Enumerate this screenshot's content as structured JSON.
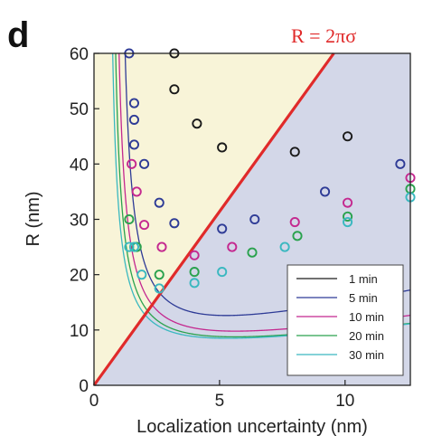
{
  "panel_label": "d",
  "annotation": "R = 2πσ",
  "chart_data": {
    "type": "scatter",
    "xlabel": "Localization uncertainty (nm)",
    "ylabel": "R (nm)",
    "xlim": [
      0,
      12.6
    ],
    "ylim": [
      0,
      60
    ],
    "xticks": [
      0,
      5,
      10
    ],
    "yticks": [
      0,
      10,
      20,
      30,
      40,
      50,
      60
    ],
    "grid": false,
    "legend_position": "bottom-right",
    "regions": {
      "above_line_color": "#f8f4d8",
      "below_line_color": "#d3d7e8"
    },
    "reference_line": {
      "label": "R = 2πσ",
      "slope": 6.2832,
      "color": "#e02a2a"
    },
    "series": [
      {
        "name": "1 min",
        "color": "#1a1a1a",
        "fit": {
          "a": 150,
          "b": 5.5,
          "c": 1.9,
          "k": 1.2
        },
        "points": [
          [
            3.2,
            60
          ],
          [
            3.2,
            53.5
          ],
          [
            4.1,
            47.3
          ],
          [
            5.1,
            43
          ],
          [
            8.0,
            42.2
          ],
          [
            10.1,
            45
          ]
        ]
      },
      {
        "name": "5 min",
        "color": "#2e3b96",
        "fit": {
          "a": 19,
          "b": 1.0,
          "c": 0.9,
          "k": 3.0
        },
        "points": [
          [
            1.4,
            60
          ],
          [
            1.6,
            51
          ],
          [
            1.6,
            48
          ],
          [
            1.6,
            43.5
          ],
          [
            2.0,
            40
          ],
          [
            2.6,
            33
          ],
          [
            3.2,
            29.3
          ],
          [
            5.1,
            28.3
          ],
          [
            6.4,
            30
          ],
          [
            9.2,
            35
          ],
          [
            12.2,
            40
          ]
        ]
      },
      {
        "name": "10 min",
        "color": "#c4288f",
        "fit": {
          "a": 17,
          "b": 0.7,
          "c": 0.7,
          "k": 2.4
        },
        "points": [
          [
            1.5,
            40
          ],
          [
            1.7,
            35
          ],
          [
            2.0,
            29
          ],
          [
            2.7,
            25
          ],
          [
            4.0,
            23.5
          ],
          [
            5.5,
            25
          ],
          [
            8.0,
            29.5
          ],
          [
            10.1,
            33
          ],
          [
            12.6,
            37.5
          ]
        ]
      },
      {
        "name": "20 min",
        "color": "#2aa24e",
        "fit": {
          "a": 15,
          "b": 0.6,
          "c": 0.6,
          "k": 2.4
        },
        "points": [
          [
            1.4,
            30
          ],
          [
            1.7,
            25
          ],
          [
            2.6,
            20
          ],
          [
            4.0,
            20.5
          ],
          [
            6.3,
            24
          ],
          [
            8.1,
            27
          ],
          [
            10.1,
            30.5
          ],
          [
            12.6,
            35.5
          ]
        ]
      },
      {
        "name": "30 min",
        "color": "#3ab8c0",
        "fit": {
          "a": 14,
          "b": 0.6,
          "c": 0.5,
          "k": 2.4
        },
        "points": [
          [
            1.4,
            25
          ],
          [
            1.6,
            25
          ],
          [
            1.9,
            20
          ],
          [
            2.6,
            17.5
          ],
          [
            4.0,
            18.5
          ],
          [
            5.1,
            20.5
          ],
          [
            7.6,
            25
          ],
          [
            10.1,
            29.5
          ],
          [
            12.6,
            34
          ]
        ]
      }
    ]
  }
}
